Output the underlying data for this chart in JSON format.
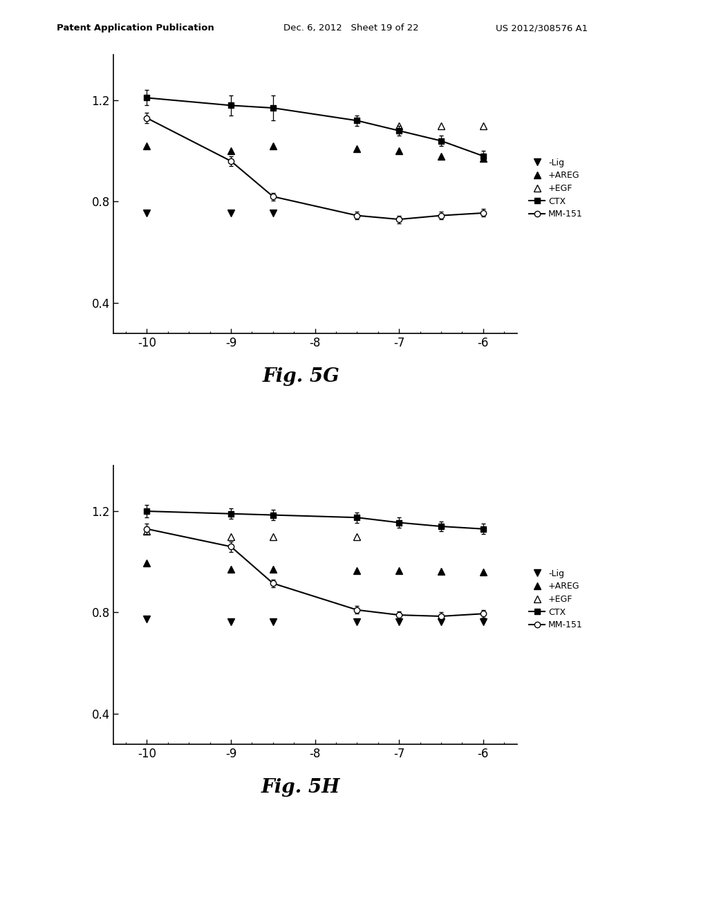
{
  "header_left": "Patent Application Publication",
  "header_mid": "Dec. 6, 2012   Sheet 19 of 22",
  "header_right": "US 2012/308576 A1",
  "fig_G": {
    "title": "Fig. 5G",
    "xlim": [
      -10.4,
      -5.6
    ],
    "ylim": [
      0.28,
      1.38
    ],
    "xticks": [
      -10,
      -9,
      -8,
      -7,
      -6
    ],
    "yticks": [
      0.4,
      0.8,
      1.2
    ],
    "series": {
      "lig": {
        "label": "-Lig",
        "marker": "v",
        "filled": true,
        "line": false,
        "x": [
          -10,
          -9,
          -8.5
        ],
        "y": [
          0.755,
          0.755,
          0.755
        ],
        "yerr": null
      },
      "areg": {
        "label": "+AREG",
        "marker": "^",
        "filled": true,
        "line": false,
        "x": [
          -10,
          -9,
          -8.5,
          -7.5,
          -7,
          -6.5,
          -6
        ],
        "y": [
          1.02,
          1.0,
          1.02,
          1.01,
          1.0,
          0.98,
          0.97
        ],
        "yerr": null
      },
      "egf": {
        "label": "+EGF",
        "marker": "^",
        "filled": false,
        "line": false,
        "x": [
          -7,
          -6.5,
          -6
        ],
        "y": [
          1.1,
          1.1,
          1.1
        ],
        "yerr": null
      },
      "ctx": {
        "label": "CTX",
        "marker": "s",
        "filled": true,
        "line": true,
        "x": [
          -10,
          -9,
          -8.5,
          -7.5,
          -7,
          -6.5,
          -6
        ],
        "y": [
          1.21,
          1.18,
          1.17,
          1.12,
          1.08,
          1.04,
          0.98
        ],
        "yerr": [
          0.03,
          0.04,
          0.05,
          0.02,
          0.02,
          0.02,
          0.02
        ]
      },
      "mm151": {
        "label": "MM-151",
        "marker": "o",
        "filled": false,
        "line": true,
        "x": [
          -10,
          -9,
          -8.5,
          -7.5,
          -7,
          -6.5,
          -6
        ],
        "y": [
          1.13,
          0.96,
          0.82,
          0.745,
          0.73,
          0.745,
          0.755
        ],
        "yerr": [
          0.02,
          0.02,
          0.015,
          0.015,
          0.015,
          0.015,
          0.015
        ]
      }
    }
  },
  "fig_H": {
    "title": "Fig. 5H",
    "xlim": [
      -10.4,
      -5.6
    ],
    "ylim": [
      0.28,
      1.38
    ],
    "xticks": [
      -10,
      -9,
      -8,
      -7,
      -6
    ],
    "yticks": [
      0.4,
      0.8,
      1.2
    ],
    "series": {
      "lig": {
        "label": "-Lig",
        "marker": "v",
        "filled": true,
        "line": false,
        "x": [
          -10,
          -9,
          -8.5,
          -7.5,
          -7,
          -6.5,
          -6
        ],
        "y": [
          0.775,
          0.762,
          0.762,
          0.762,
          0.762,
          0.762,
          0.762
        ],
        "yerr": null
      },
      "areg": {
        "label": "+AREG",
        "marker": "^",
        "filled": true,
        "line": false,
        "x": [
          -10,
          -9,
          -8.5,
          -7.5,
          -7,
          -6.5,
          -6
        ],
        "y": [
          0.995,
          0.97,
          0.97,
          0.965,
          0.965,
          0.962,
          0.96
        ],
        "yerr": null
      },
      "egf": {
        "label": "+EGF",
        "marker": "^",
        "filled": false,
        "line": false,
        "x": [
          -10,
          -9,
          -8.5,
          -7.5
        ],
        "y": [
          1.12,
          1.1,
          1.1,
          1.1
        ],
        "yerr": null
      },
      "ctx": {
        "label": "CTX",
        "marker": "s",
        "filled": true,
        "line": true,
        "x": [
          -10,
          -9,
          -8.5,
          -7.5,
          -7,
          -6.5,
          -6
        ],
        "y": [
          1.2,
          1.19,
          1.185,
          1.175,
          1.155,
          1.14,
          1.13
        ],
        "yerr": [
          0.025,
          0.02,
          0.02,
          0.02,
          0.02,
          0.02,
          0.02
        ]
      },
      "mm151": {
        "label": "MM-151",
        "marker": "o",
        "filled": false,
        "line": true,
        "x": [
          -10,
          -9,
          -8.5,
          -7.5,
          -7,
          -6.5,
          -6
        ],
        "y": [
          1.13,
          1.06,
          0.915,
          0.81,
          0.79,
          0.785,
          0.795
        ],
        "yerr": [
          0.02,
          0.02,
          0.015,
          0.015,
          0.015,
          0.015,
          0.015
        ]
      }
    }
  },
  "bg_color": "#ffffff"
}
